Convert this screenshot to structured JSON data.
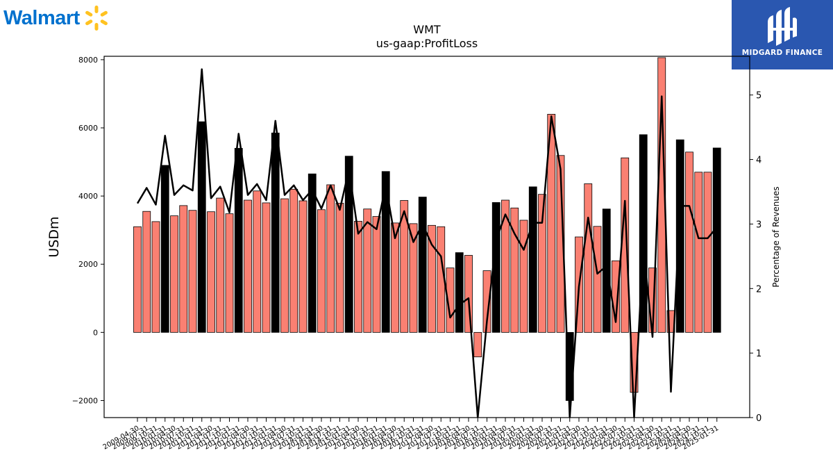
{
  "header": {
    "brand_logo": "Walmart",
    "watermark": "MIDGARD FINANCE"
  },
  "colors": {
    "bar_default": "#fa8072",
    "bar_highlight": "#000000",
    "line": "#000000",
    "walmart_blue": "#0071ce",
    "walmart_spark": "#ffc220",
    "midgard_bg": "#2a57b0"
  },
  "chart_data": {
    "type": "bar",
    "title": "WMT",
    "subtitle": "us-gaap:ProfitLoss",
    "ylabel": "USDm",
    "ylabel_right": "Percentage of Revenues",
    "ylim": [
      -2500,
      8100
    ],
    "ylim_right": [
      0,
      5.6
    ],
    "yticks": [
      -2000,
      0,
      2000,
      4000,
      6000,
      8000
    ],
    "yticks_right": [
      0,
      1,
      2,
      3,
      4,
      5
    ],
    "legend": "none",
    "grid": false,
    "x_labels_visible": [
      "2009-04-30",
      "2009-07-31",
      "2009-10-31",
      "2010-01-31",
      "2010-04-30",
      "2010-07-31",
      "2010-10-31",
      "2011-01-31",
      "2011-04-30",
      "2011-07-31",
      "2011-10-31",
      "2012-01-31",
      "2012-04-30",
      "2012-07-31",
      "2012-10-31",
      "2013-01-31",
      "2013-04-30",
      "2013-07-31",
      "2013-10-31",
      "2014-01-31",
      "2014-04-30",
      "2014-07-31",
      "2014-10-31",
      "2015-01-31",
      "2015-04-30",
      "2015-07-31",
      "2015-10-31",
      "2016-01-31",
      "2016-04-30",
      "2016-07-31",
      "2016-10-31",
      "2017-01-31",
      "2017-04-30",
      "2017-07-31",
      "2017-10-31",
      "2018-01-31",
      "2018-04-30",
      "2018-07-31",
      "2018-10-31",
      "2019-01-31",
      "2019-04-30",
      "2019-07-31",
      "2019-10-31",
      "2020-01-31",
      "2020-04-30",
      "2020-07-31",
      "2020-10-31",
      "2021-01-31",
      "2021-04-30",
      "2021-07-31",
      "2021-10-31",
      "2022-01-31",
      "2022-04-30",
      "2022-07-31",
      "2022-10-31",
      "2023-01-31",
      "2023-04-30",
      "2023-07-31",
      "2023-10-31",
      "2024-01-31",
      "2024-04-30",
      "2024-07-31",
      "2024-10-31",
      "2025-01-31"
    ],
    "bars": [
      3100,
      3550,
      3250,
      4900,
      3420,
      3720,
      3580,
      6180,
      3540,
      3940,
      3480,
      5400,
      3880,
      4150,
      3800,
      5850,
      3920,
      4200,
      3860,
      4650,
      3600,
      4330,
      3790,
      5170,
      3260,
      3620,
      3400,
      4720,
      3210,
      3870,
      3190,
      3970,
      3140,
      3100,
      1890,
      2340,
      2260,
      -720,
      1810,
      3810,
      3880,
      3650,
      3290,
      4270,
      4050,
      6400,
      5190,
      -2000,
      2800,
      4360,
      3110,
      3620,
      2100,
      5120,
      -1760,
      5800,
      1890,
      8060,
      640,
      5650,
      5290,
      4700,
      4700,
      5410
    ],
    "highlight": [
      false,
      false,
      false,
      true,
      false,
      false,
      false,
      true,
      false,
      false,
      false,
      true,
      false,
      false,
      false,
      true,
      false,
      false,
      false,
      true,
      false,
      false,
      false,
      true,
      false,
      false,
      false,
      true,
      false,
      false,
      false,
      true,
      false,
      false,
      false,
      true,
      false,
      false,
      false,
      true,
      false,
      false,
      false,
      true,
      false,
      false,
      false,
      true,
      false,
      false,
      false,
      true,
      false,
      false,
      false,
      true,
      false,
      false,
      false,
      true,
      false,
      false,
      false,
      true
    ],
    "line": [
      3.32,
      3.56,
      3.3,
      4.37,
      3.45,
      3.6,
      3.52,
      5.4,
      3.4,
      3.58,
      3.18,
      4.4,
      3.45,
      3.62,
      3.37,
      4.6,
      3.45,
      3.6,
      3.37,
      3.53,
      3.24,
      3.6,
      3.22,
      3.85,
      2.85,
      3.03,
      2.92,
      3.6,
      2.78,
      3.2,
      2.72,
      3.0,
      2.68,
      2.5,
      1.55,
      1.75,
      1.85,
      0.0,
      1.5,
      2.75,
      3.15,
      2.85,
      2.6,
      3.02,
      3.02,
      4.67,
      3.85,
      0.0,
      2.03,
      3.1,
      2.23,
      2.35,
      1.48,
      3.36,
      0.0,
      2.65,
      1.25,
      4.98,
      0.4,
      3.28,
      3.28,
      2.78,
      2.78,
      2.95
    ]
  }
}
